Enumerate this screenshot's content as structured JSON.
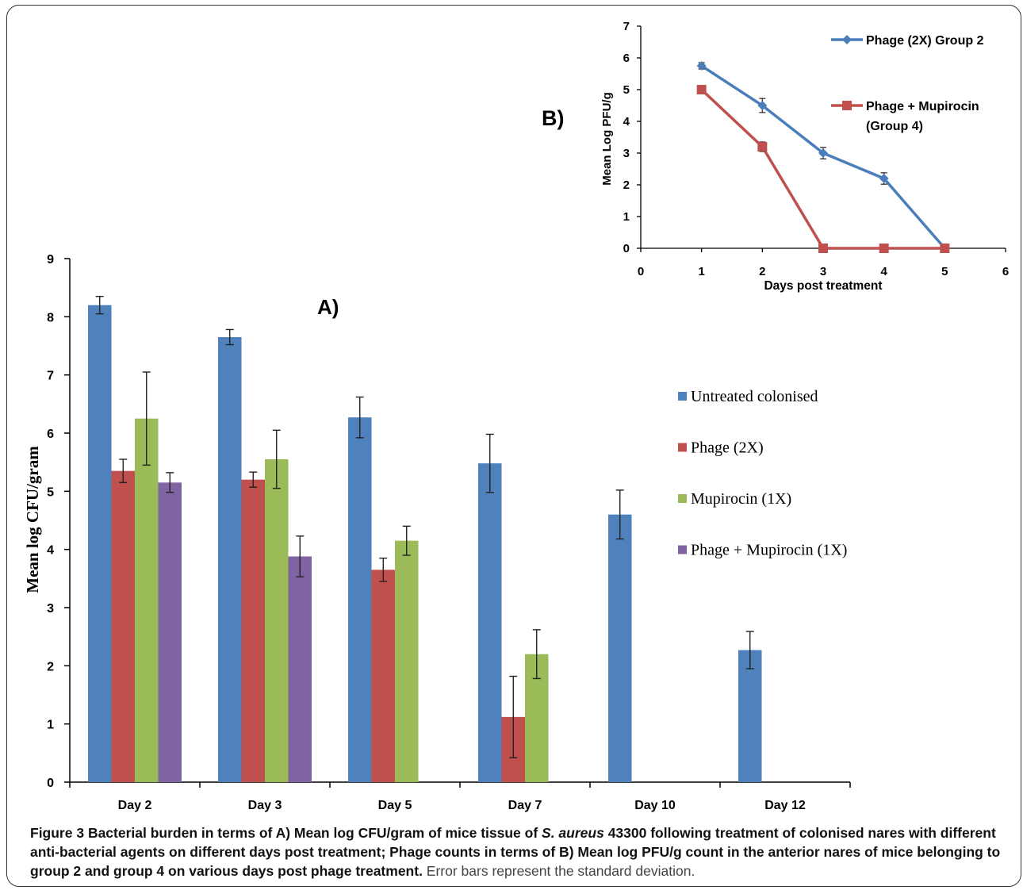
{
  "chart_data": [
    {
      "panel": "A)",
      "type": "bar",
      "ylabel": "Mean log CFU/gram",
      "ylim": [
        0,
        9
      ],
      "yticks": [
        "0",
        "1",
        "2",
        "3",
        "4",
        "5",
        "6",
        "7",
        "8",
        "9"
      ],
      "categories": [
        "Day 2",
        "Day 3",
        "Day 5",
        "Day 7",
        "Day 10",
        "Day 12"
      ],
      "legend_position": "right",
      "series": [
        {
          "name": "Untreated colonised",
          "color": "#4f81bd",
          "values": [
            8.2,
            7.65,
            6.27,
            5.48,
            4.6,
            2.27
          ],
          "errors": [
            0.15,
            0.13,
            0.35,
            0.5,
            0.42,
            0.32
          ]
        },
        {
          "name": "Phage (2X)",
          "color": "#c0504d",
          "values": [
            5.35,
            5.2,
            3.65,
            1.12,
            null,
            null
          ],
          "errors": [
            0.2,
            0.13,
            0.2,
            0.7,
            null,
            null
          ]
        },
        {
          "name": "Mupirocin (1X)",
          "color": "#9bbb59",
          "values": [
            6.25,
            5.55,
            4.15,
            2.2,
            null,
            null
          ],
          "errors": [
            0.8,
            0.5,
            0.25,
            0.42,
            null,
            null
          ]
        },
        {
          "name": "Phage + Mupirocin (1X)",
          "color": "#8064a2",
          "values": [
            5.15,
            3.88,
            null,
            null,
            null,
            null
          ],
          "errors": [
            0.17,
            0.35,
            null,
            null,
            null,
            null
          ]
        }
      ]
    },
    {
      "panel": "B)",
      "type": "line",
      "xlabel": "Days post treatment",
      "ylabel": "Mean Log PFU/g",
      "xlim": [
        0,
        6
      ],
      "ylim": [
        0,
        7
      ],
      "xticks": [
        "0",
        "1",
        "2",
        "3",
        "4",
        "5",
        "6"
      ],
      "yticks": [
        "0",
        "1",
        "2",
        "3",
        "4",
        "5",
        "6",
        "7"
      ],
      "legend_position": "top-right",
      "series": [
        {
          "name": "Phage (2X) Group 2",
          "color": "#4a7ebb",
          "marker": "diamond",
          "x": [
            1,
            2,
            3,
            4,
            5
          ],
          "y": [
            5.75,
            4.5,
            3.0,
            2.2,
            0.0
          ],
          "errors": [
            0.1,
            0.22,
            0.18,
            0.18,
            0.0
          ]
        },
        {
          "name": "Phage + Mupirocin (Group 4)",
          "legend_lines": [
            "Phage + Mupirocin",
            "(Group 4)"
          ],
          "color": "#c0504d",
          "marker": "square",
          "x": [
            1,
            2,
            3,
            4,
            5
          ],
          "y": [
            5.0,
            3.2,
            0.0,
            0.0,
            0.0
          ],
          "errors": [
            0.0,
            0.15,
            0.0,
            0.0,
            0.0
          ]
        }
      ]
    }
  ],
  "caption": {
    "figure_label": "Figure 3",
    "bold_part1": " Bacterial burden in terms of A) Mean log CFU/gram of mice tissue of ",
    "italic_species": "S. aureus",
    "bold_part2": " 43300 following treatment of colonised nares with different anti-bacterial agents on different days post treatment; Phage counts in terms of B) Mean log PFU/g count in the anterior nares of mice belonging to group 2 and group 4 on various days post phage treatment.",
    "plain_part": " Error bars represent the standard deviation."
  }
}
